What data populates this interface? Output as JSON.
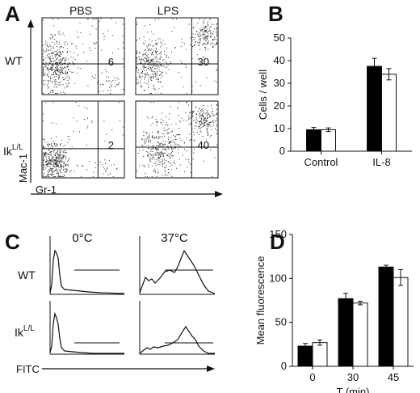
{
  "panels": {
    "A": {
      "label": "A",
      "columns": [
        "PBS",
        "LPS"
      ],
      "rows": [
        {
          "label_main": "WT",
          "label_sup": ""
        },
        {
          "label_main": "Ik",
          "label_sup": "L/L"
        }
      ],
      "quadrant_values": [
        [
          "6",
          "30"
        ],
        [
          "2",
          "40"
        ]
      ],
      "y_axis_label": "Mac-1",
      "x_axis_label": "Gr-1"
    },
    "C": {
      "label": "C",
      "columns": [
        "0°C",
        "37°C"
      ],
      "rows": [
        {
          "label_main": "WT",
          "label_sup": ""
        },
        {
          "label_main": "Ik",
          "label_sup": "L/L"
        }
      ],
      "x_axis_label": "FITC"
    }
  },
  "chart_data": [
    {
      "panel": "B",
      "label": "B",
      "type": "bar",
      "categories": [
        "Control",
        "IL-8"
      ],
      "series": [
        {
          "values": [
            9.5,
            37.5
          ],
          "errors": [
            1.0,
            3.5
          ],
          "color": "#000000"
        },
        {
          "values": [
            9.5,
            34.0
          ],
          "errors": [
            0.8,
            2.5
          ],
          "color": "#ffffff"
        }
      ],
      "xlabel": "",
      "ylabel": "Cells / well",
      "ylim": [
        0,
        50
      ],
      "yticks": [
        0,
        10,
        20,
        30,
        40,
        50
      ]
    },
    {
      "panel": "D",
      "label": "D",
      "type": "bar",
      "categories": [
        "0",
        "30",
        "45"
      ],
      "series": [
        {
          "values": [
            23,
            77,
            113
          ],
          "errors": [
            3,
            6,
            2
          ],
          "color": "#000000"
        },
        {
          "values": [
            27,
            72,
            101
          ],
          "errors": [
            3,
            2,
            9
          ],
          "color": "#ffffff"
        }
      ],
      "xlabel": "T (min)",
      "ylabel": "Mean fluorescence",
      "ylim": [
        0,
        150
      ],
      "yticks": [
        0,
        50,
        100,
        150
      ]
    }
  ]
}
